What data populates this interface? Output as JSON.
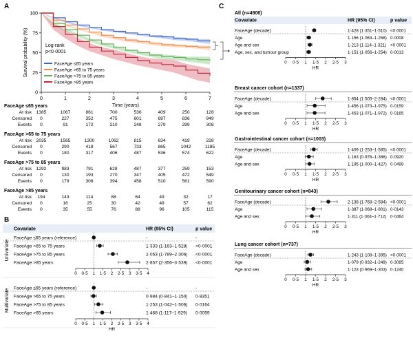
{
  "panels": {
    "a": "A",
    "b": "B",
    "c": "C"
  },
  "colors": {
    "le65": "#3b63c4",
    "p65_75": "#f08a4b",
    "p75_85": "#5fb356",
    "gt85": "#c8283a",
    "panel_header_bg": "#e7eef7",
    "ci": "#555555"
  },
  "chart_data": [
    {
      "id": "km",
      "type": "line",
      "title": "",
      "xlabel": "Time (years)",
      "ylabel": "Survival probability (%)",
      "xlim": [
        0,
        7
      ],
      "ylim": [
        0,
        100
      ],
      "xticks": [
        0,
        1,
        2,
        3,
        4,
        5,
        6,
        7
      ],
      "yticks": [
        0,
        25,
        50,
        75,
        100
      ],
      "annotation": [
        "Log-rank",
        "p<0·0001"
      ],
      "legend_position": "lower-left",
      "series": [
        {
          "name": "FaceAge ≤65 years",
          "color_key": "le65",
          "x": [
            0,
            0.5,
            1,
            1.5,
            2,
            2.5,
            3,
            3.5,
            4,
            4.5,
            5,
            5.5,
            6,
            6.5,
            7
          ],
          "y": [
            100,
            94,
            89,
            85,
            82,
            79,
            77,
            75,
            73,
            71,
            70,
            68,
            67,
            65,
            64
          ],
          "ci_lower": [
            100,
            93,
            88,
            84,
            81,
            78,
            76,
            74,
            72,
            70,
            68,
            66,
            65,
            63,
            61
          ],
          "ci_upper": [
            100,
            95,
            90,
            86,
            83,
            80,
            78,
            76,
            74,
            72,
            72,
            70,
            69,
            67,
            67
          ]
        },
        {
          "name": "FaceAge >65 to 75 years",
          "color_key": "p65_75",
          "x": [
            0,
            0.5,
            1,
            1.5,
            2,
            2.5,
            3,
            3.5,
            4,
            4.5,
            5,
            5.5,
            6,
            6.5,
            7
          ],
          "y": [
            100,
            91,
            85,
            80,
            76,
            72,
            69,
            66,
            64,
            62,
            60,
            59,
            58,
            57,
            56
          ],
          "ci_lower": [
            100,
            90,
            84,
            79,
            75,
            70,
            67,
            64,
            62,
            60,
            58,
            57,
            56,
            55,
            53
          ],
          "ci_upper": [
            100,
            92,
            86,
            81,
            77,
            74,
            71,
            68,
            66,
            64,
            62,
            61,
            60,
            59,
            59
          ]
        },
        {
          "name": "FaceAge >75 to 85 years",
          "color_key": "p75_85",
          "x": [
            0,
            0.5,
            1,
            1.5,
            2,
            2.5,
            3,
            3.5,
            4,
            4.5,
            5,
            5.5,
            6,
            6.5,
            7
          ],
          "y": [
            100,
            87,
            79,
            72,
            66,
            61,
            57,
            53,
            50,
            47,
            45,
            44,
            42,
            41,
            40
          ],
          "ci_lower": [
            100,
            85,
            77,
            70,
            64,
            59,
            55,
            51,
            48,
            45,
            42,
            41,
            39,
            37,
            35
          ],
          "ci_upper": [
            100,
            89,
            81,
            74,
            68,
            63,
            59,
            55,
            52,
            49,
            48,
            47,
            45,
            45,
            45
          ]
        },
        {
          "name": "FaceAge >85 years",
          "color_key": "gt85",
          "x": [
            0,
            0.5,
            1,
            1.5,
            2,
            2.5,
            3,
            3.5,
            4,
            4.5,
            5,
            5.5,
            6,
            6.5,
            7
          ],
          "y": [
            100,
            83,
            73,
            64,
            57,
            52,
            48,
            44,
            40,
            37,
            35,
            33,
            28,
            24,
            21
          ],
          "ci_lower": [
            100,
            79,
            68,
            59,
            52,
            47,
            42,
            38,
            34,
            31,
            28,
            25,
            20,
            15,
            12
          ],
          "ci_upper": [
            100,
            87,
            78,
            69,
            62,
            57,
            54,
            50,
            46,
            43,
            42,
            41,
            36,
            33,
            30
          ]
        }
      ]
    },
    {
      "id": "risk",
      "type": "table",
      "time_points": [
        0,
        1,
        2,
        3,
        4,
        5,
        6,
        7
      ],
      "groups": [
        {
          "title": "FaceAge ≤65 years",
          "rows": [
            {
              "label": "At risk",
              "values": [
                "1385",
                "1067",
                "861",
                "700",
                "536",
                "409",
                "250",
                "128"
              ]
            },
            {
              "label": "Censored",
              "values": [
                "0",
                "227",
                "352",
                "475",
                "601",
                "697",
                "836",
                "949"
              ]
            },
            {
              "label": "Events",
              "values": [
                "0",
                "91",
                "172",
                "210",
                "248",
                "279",
                "299",
                "308"
              ]
            }
          ]
        },
        {
          "title": "FaceAge >65 to 75 years",
          "rows": [
            {
              "label": "At risk",
              "values": [
                "2035",
                "1565",
                "1300",
                "1062",
                "815",
                "634",
                "419",
                "228"
              ]
            },
            {
              "label": "Censored",
              "values": [
                "0",
                "290",
                "418",
                "567",
                "733",
                "865",
                "1042",
                "1185"
              ]
            },
            {
              "label": "Events",
              "values": [
                "0",
                "180",
                "317",
                "406",
                "487",
                "536",
                "574",
                "622"
              ]
            }
          ]
        },
        {
          "title": "FaceAge >75 to 85 years",
          "rows": [
            {
              "label": "At risk",
              "values": [
                "1292",
                "983",
                "791",
                "628",
                "487",
                "377",
                "259",
                "153"
              ]
            },
            {
              "label": "Censored",
              "values": [
                "0",
                "130",
                "193",
                "270",
                "347",
                "405",
                "472",
                "549"
              ]
            },
            {
              "label": "Events",
              "values": [
                "0",
                "179",
                "308",
                "394",
                "458",
                "510",
                "561",
                "590"
              ]
            }
          ]
        },
        {
          "title": "FaceAge >85 years",
          "rows": [
            {
              "label": "At risk",
              "values": [
                "194",
                "143",
                "114",
                "88",
                "64",
                "49",
                "32",
                "17"
              ]
            },
            {
              "label": "Censored",
              "values": [
                "0",
                "16",
                "25",
                "30",
                "42",
                "49",
                "57",
                "62"
              ]
            },
            {
              "label": "Events",
              "values": [
                "0",
                "35",
                "55",
                "76",
                "88",
                "96",
                "105",
                "115"
              ]
            }
          ]
        }
      ]
    },
    {
      "id": "forest_b",
      "type": "scatter",
      "col_headers": {
        "covariate": "Covariate",
        "hr": "HR (95% CI)",
        "p": "p value"
      },
      "xlabel": "HR",
      "xlim": [
        0,
        4
      ],
      "xticks": [
        0,
        0.5,
        1,
        1.5,
        2,
        2.5,
        3,
        3.5,
        4
      ],
      "xticklabels": [
        "0",
        "0·5",
        "1",
        "1·5",
        "2",
        "2·5",
        "3",
        "3·5",
        "4"
      ],
      "sections": [
        {
          "label": "Univariate",
          "rows": [
            {
              "covariate": "FaceAge ≤65 years (reference)",
              "hr_text": "-",
              "p": "-",
              "hr": 1,
              "lo": 1,
              "hi": 1
            },
            {
              "covariate": "FaceAge >65 to 75 years",
              "hr_text": "1·333 (1·163–1·528)",
              "p": "<0·0001",
              "hr": 1.333,
              "lo": 1.163,
              "hi": 1.528
            },
            {
              "covariate": "FaceAge >75 to 85 years",
              "hr_text": "2·053 (1·789–2·306)",
              "p": "<0·0001",
              "hr": 2.053,
              "lo": 1.789,
              "hi": 2.306
            },
            {
              "covariate": "FaceAge >85 years",
              "hr_text": "2·857 (2·356–3·539)",
              "p": "<0·0001",
              "hr": 2.857,
              "lo": 2.356,
              "hi": 3.539
            }
          ]
        },
        {
          "label": "Multivariate",
          "rows": [
            {
              "covariate": "FaceAge ≤65 years (reference)",
              "hr_text": "-",
              "p": "-",
              "hr": 1,
              "lo": 1,
              "hi": 1
            },
            {
              "covariate": "FaceAge >65 to 75 years",
              "hr_text": "0·984 (0·841–1·150)",
              "p": "0·8351",
              "hr": 0.984,
              "lo": 0.841,
              "hi": 1.15
            },
            {
              "covariate": "FaceAge >75 to 85 years",
              "hr_text": "1·253 (1·042–1·506)",
              "p": "0·0164",
              "hr": 1.253,
              "lo": 1.042,
              "hi": 1.506
            },
            {
              "covariate": "FaceAge >85 years",
              "hr_text": "1·468 (1·117–1·929)",
              "p": "0·0059",
              "hr": 1.468,
              "lo": 1.117,
              "hi": 1.929
            }
          ]
        }
      ]
    },
    {
      "id": "forest_c",
      "type": "scatter",
      "col_headers": {
        "covariate": "Covariate",
        "hr": "HR (95% CI)",
        "p": "p value"
      },
      "xlabel": "HR",
      "xlim": [
        0,
        3
      ],
      "xticks": [
        0,
        0.5,
        1,
        1.5,
        2,
        2.5,
        3
      ],
      "xticklabels": [
        "0",
        "0·5",
        "1",
        "1·5",
        "2",
        "2·5",
        "3"
      ],
      "cohorts": [
        {
          "title": "All (n=4906)",
          "rows": [
            {
              "covariate": "FaceAge (decade)",
              "hr_text": "1·428 (1·351–1·510)",
              "p": "<0·0001",
              "hr": 1.428,
              "lo": 1.351,
              "hi": 1.51
            },
            {
              "covariate": "Age",
              "hr_text": "1·156 (1·063–1·258)",
              "p": "0·0008",
              "hr": 1.156,
              "lo": 1.063,
              "hi": 1.258
            },
            {
              "covariate": "Age and sex",
              "hr_text": "1·213 (1·114–1·321)",
              "p": "<0·0001",
              "hr": 1.213,
              "lo": 1.114,
              "hi": 1.321
            },
            {
              "covariate": "Age, sex, and tumour group",
              "hr_text": "1·151 (1·056–1·254)",
              "p": "0·0013",
              "hr": 1.151,
              "lo": 1.056,
              "hi": 1.254
            }
          ]
        },
        {
          "title": "Breast cancer cohort (n=1337)",
          "rows": [
            {
              "covariate": "FaceAge (decade)",
              "hr_text": "1·854 (1·505–2·284)",
              "p": "<0·0001",
              "hr": 1.854,
              "lo": 1.505,
              "hi": 2.284
            },
            {
              "covariate": "Age",
              "hr_text": "1·456 (1·073–1·975)",
              "p": "0·0159",
              "hr": 1.456,
              "lo": 1.073,
              "hi": 1.975
            },
            {
              "covariate": "Age and sex",
              "hr_text": "1·453 (1·071–1·972)",
              "p": "0·0165",
              "hr": 1.453,
              "lo": 1.071,
              "hi": 1.972
            }
          ]
        },
        {
          "title": "Gastrointestinal cancer cohort (n=1003)",
          "rows": [
            {
              "covariate": "FaceAge (decade)",
              "hr_text": "1·409 (1·253–1·585)",
              "p": "<0·0001",
              "hr": 1.409,
              "lo": 1.253,
              "hi": 1.585
            },
            {
              "covariate": "Age",
              "hr_text": "1·163 (0·976–1·386)",
              "p": "0·0920",
              "hr": 1.163,
              "lo": 0.976,
              "hi": 1.386
            },
            {
              "covariate": "Age and sex",
              "hr_text": "1·195 (1·000–1·427)",
              "p": "0·0499",
              "hr": 1.195,
              "lo": 1.0,
              "hi": 1.427
            }
          ]
        },
        {
          "title": "Genitourinary cancer cohort (n=843)",
          "rows": [
            {
              "covariate": "FaceAge (decade)",
              "hr_text": "2·138 (1·768–2·584)",
              "p": "<0·0001",
              "hr": 2.138,
              "lo": 1.768,
              "hi": 2.584
            },
            {
              "covariate": "Age",
              "hr_text": "1·387 (1·068–1·801)",
              "p": "0·0143",
              "hr": 1.387,
              "lo": 1.068,
              "hi": 1.801
            },
            {
              "covariate": "Age and sex",
              "hr_text": "1·311 (1·004–1·712)",
              "p": "0·0464",
              "hr": 1.311,
              "lo": 1.004,
              "hi": 1.712
            }
          ]
        },
        {
          "title": "Lung cancer cohort (n=737)",
          "rows": [
            {
              "covariate": "FaceAge (decade)",
              "hr_text": "1·243 (1·108–1·395)",
              "p": "<0·0001",
              "hr": 1.243,
              "lo": 1.108,
              "hi": 1.395
            },
            {
              "covariate": "Age",
              "hr_text": "1·079 (0·932–1·249)",
              "p": "0·3085",
              "hr": 1.079,
              "lo": 0.932,
              "hi": 1.249
            },
            {
              "covariate": "Age and sex",
              "hr_text": "1·123 (0·969–1·303)",
              "p": "0·1240",
              "hr": 1.123,
              "lo": 0.969,
              "hi": 1.303
            }
          ]
        }
      ]
    }
  ]
}
